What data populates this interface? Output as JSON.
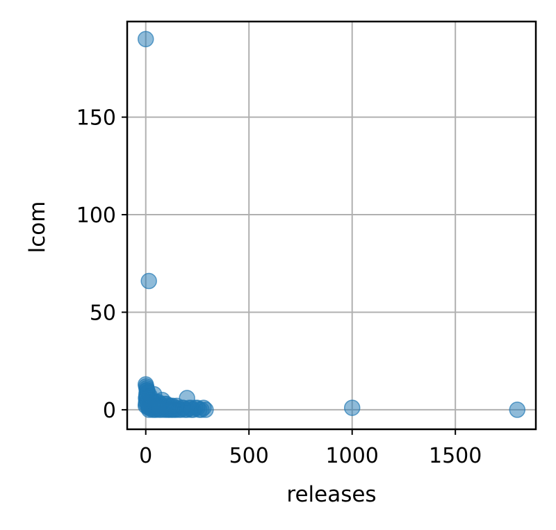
{
  "chart_data": {
    "type": "scatter",
    "xlabel": "releases",
    "ylabel": "lcom",
    "xlim": [
      -90,
      1890
    ],
    "ylim": [
      -10,
      199
    ],
    "xticks": [
      0,
      500,
      1000,
      1500
    ],
    "yticks": [
      0,
      50,
      100,
      150
    ],
    "grid": true,
    "point_color": "#1f77b4",
    "point_alpha": 0.5,
    "series": [
      {
        "x": [
          0,
          15,
          1000,
          1800,
          0,
          2,
          4,
          6,
          8,
          3,
          5,
          1,
          7,
          9,
          10,
          12,
          14,
          16,
          18,
          20,
          22,
          25,
          28,
          30,
          32,
          35,
          38,
          40,
          42,
          45,
          48,
          50,
          55,
          60,
          65,
          70,
          75,
          80,
          85,
          90,
          95,
          100,
          105,
          110,
          115,
          120,
          125,
          130,
          135,
          140,
          145,
          150,
          160,
          170,
          180,
          190,
          200,
          210,
          220,
          230,
          240,
          250,
          260,
          270,
          280,
          290,
          200,
          80,
          40,
          20,
          10,
          5,
          3,
          2,
          1,
          0,
          60,
          30,
          15,
          100,
          50,
          25,
          120,
          70,
          35,
          150,
          90,
          45,
          180,
          110,
          55,
          220,
          130,
          65
        ],
        "y": [
          190,
          66,
          1,
          0,
          13,
          12,
          11,
          10,
          9,
          8,
          7,
          6,
          5,
          4,
          3,
          2,
          1,
          0,
          1,
          2,
          3,
          4,
          2,
          1,
          0,
          3,
          2,
          1,
          0,
          2,
          1,
          0,
          1,
          2,
          0,
          1,
          0,
          2,
          1,
          0,
          1,
          0,
          1,
          0,
          0,
          1,
          0,
          0,
          1,
          0,
          0,
          1,
          0,
          0,
          1,
          0,
          0,
          1,
          0,
          0,
          1,
          1,
          0,
          0,
          1,
          0,
          6,
          5,
          8,
          7,
          9,
          10,
          6,
          4,
          3,
          2,
          4,
          5,
          6,
          3,
          4,
          5,
          2,
          3,
          4,
          2,
          3,
          3,
          1,
          2,
          2,
          1,
          2,
          1
        ]
      }
    ]
  }
}
